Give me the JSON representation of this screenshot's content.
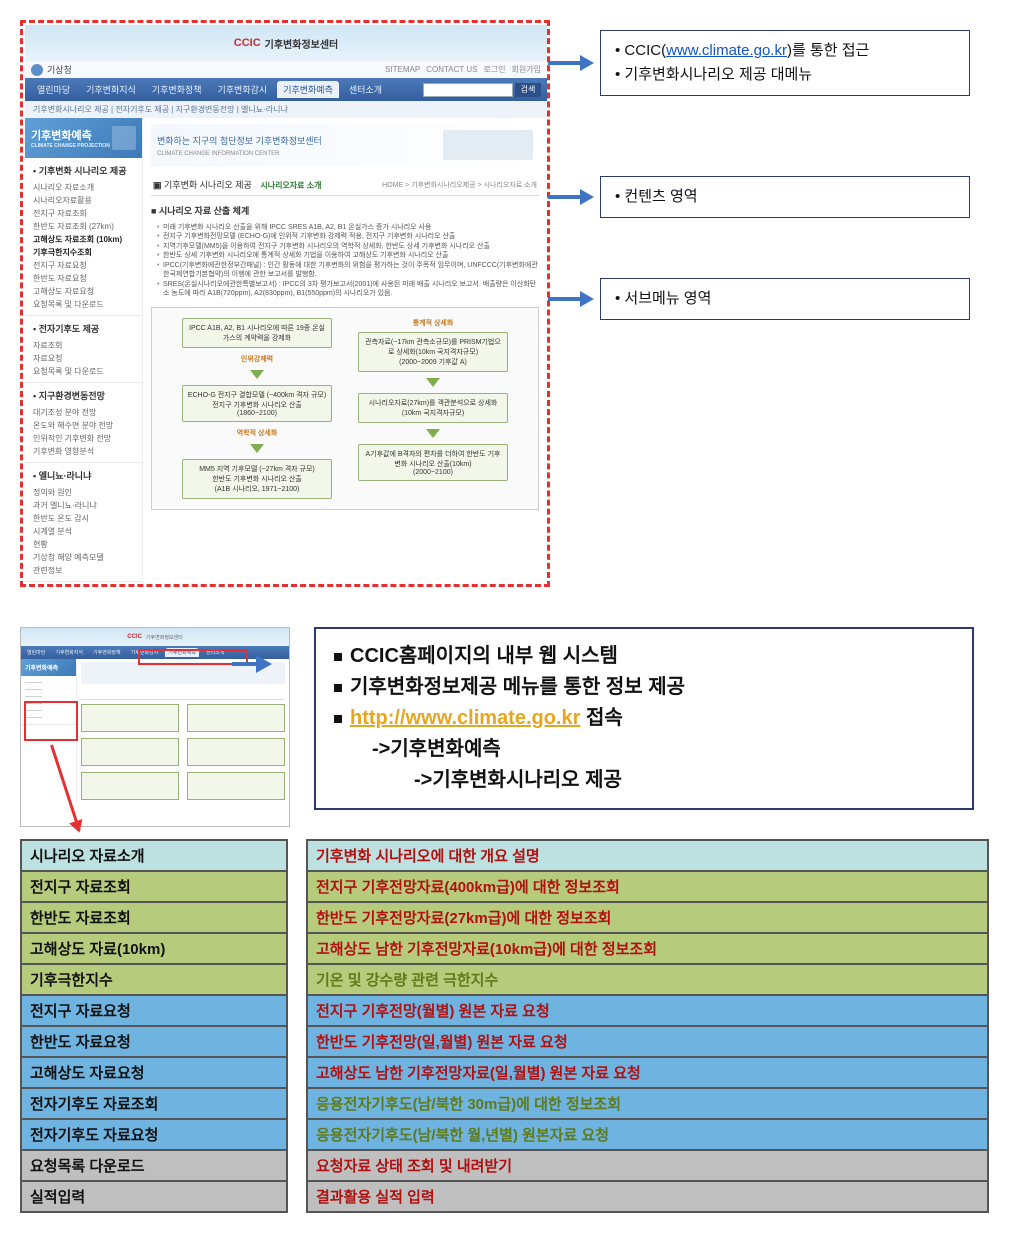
{
  "top": {
    "logo_text": "CCIC",
    "logo_sub": "기후변화정보센터",
    "logo_sub2": "CLIMATE CHANGE INFORMATION CENTER",
    "kma": "기상청",
    "util": {
      "sitemap": "SITEMAP",
      "contact": "CONTACT US",
      "login": "로그인",
      "join": "회원가입"
    },
    "gnb": [
      "열린마당",
      "기후변화지식",
      "기후변화정책",
      "기후변화감시",
      "기후변화예측",
      "센터소개"
    ],
    "gnb_active_index": 4,
    "search_btn": "검색",
    "sub_nav": "기후변화시나리오 제공 | 전자기후도 제공 | 지구환경변동전망 | 엘니뇨·라니냐",
    "lnb_head": "기후변화예측",
    "lnb_head_sub": "CLIMATE CHANGE PROJECTION",
    "lnb_groups": [
      {
        "title": "기후변화 시나리오 제공",
        "items": [
          "시나리오 자료소개",
          "시나리오자료활용",
          "전지구 자료조회",
          "한반도 자료조회 (27km)",
          "고해상도 자료조회 (10km)",
          "기후극한지수조회",
          "전지구 자료요청",
          "한반도 자료요청",
          "고해상도 자료요청",
          "요청목록 및 다운로드"
        ],
        "bold": [
          4,
          5
        ]
      },
      {
        "title": "전자기후도 제공",
        "items": [
          "자료조회",
          "자료요청",
          "요청목록 및 다운로드"
        ]
      },
      {
        "title": "지구환경변동전망",
        "items": [
          "대기조성 분야 전망",
          "온도와 해수면 분야 전망",
          "인위적인 기후변화 전망",
          "기후변화 영향분석"
        ]
      },
      {
        "title": "엘니뇨·라니냐",
        "items": [
          "정의와 원인",
          "과거 엘니뇨·라니냐",
          "한반도 온도 감시",
          "시계열 분석",
          "현황",
          "기상청 해양 예측모델",
          "관련정보"
        ]
      }
    ],
    "content_banner": "변화하는 지구의 첨단정보 기후변화정보센터",
    "content_banner_sub": "CLIMATE CHANGE INFORMATION CENTER",
    "content_title": "기후변화 시나리오 제공",
    "content_tab": "시나리오자료 소개",
    "content_breadcrumb": "HOME > 기후변화시나리오제공 > 시나리오자료 소개",
    "content_subhead": "시나리오 자료 산출 체계",
    "content_bullets": [
      "미래 기후변화 시나리오 산출을 위해 IPCC SRES A1B, A2, B1 온실가스 증가 시나리오 사용",
      "전지구 기후변화전망모델 (ECHO-G)에 인위적 기후변화 강제력 적용, 전지구 기후변화 시나리오 산출",
      "지역기후모델(MM5)을 이용하여 전지구 기후변화 시나리오의 역학적 상세화, 한반도 상세 기후변화 시나리오 산출",
      "한반도 상세 기후변화 시나리오에 통계적 상세화 기법을 이용하여 고해상도 기후변화 시나리오 산출",
      "IPCC(기후변화에관한정부간패널) : 인간 활동에 대한 기후변화의 위험을 평가하는 것이 주목적 임무이며, UNFCCC(기후변화에관한국제연합기본협약)의 이행에 관한 보고서를 발행함.",
      "SRES(온실시나리오에관한특별보고서) : IPCC의 3차 평가보고서(2001)에 사용된 미래 배출 시나리오 보고서. 배출량은 이산화탄소 농도에 따라 A1B(720ppm), A2(830ppm), B1(550ppm)의 시나리오가 있음."
    ],
    "flow_left": [
      {
        "t": "IPCC A1B, A2, B1 시나리오에 따른 19종 온실가스의 계약력을 강제화"
      },
      {
        "t": "ECHO-G 전지구 결합모델 (~400km 격자 규모)\\n전지구 기후변화 시나리오 산출\\n(1860~2100)"
      },
      {
        "t": "MM5 지역 기후모델 (~27km 격자 규모)\\n한반도 기후변화 시나리오 산출\\n(A1B 시나리오, 1971~2100)"
      }
    ],
    "flow_left_arrow_labels": [
      "인위강제력",
      "역학적 상세화"
    ],
    "flow_right_label": "통계적 상세화",
    "flow_right": [
      {
        "t": "관측자료(~17km 관측소규모)를 PRISM기법으로 상세화(10km 국지격자규모)\\n(2000~2009 기후값 A)"
      },
      {
        "t": "시나리오자료(27km)를 객관분석으로 상세화(10km 국지격자규모)"
      },
      {
        "t": "A기후값에 B격자의 편차를 더하여 한반도 기후변화 시나리오 산출(10km)\\n(2000~2100)"
      }
    ],
    "callouts": [
      {
        "html": "• CCIC(<a>www.climate.go.kr</a>)를 통한 접근<br>• 기후변화시나리오 제공 대메뉴"
      },
      {
        "html": "• 컨텐츠 영역"
      },
      {
        "html": "• 서브메뉴 영역"
      }
    ]
  },
  "info_lines": [
    "CCIC홈페이지의 내부 웹 시스템",
    "기후변화정보제공 메뉴를 통한 정보 제공"
  ],
  "info_url": "http://www.climate.go.kr",
  "info_url_tail": " 접속",
  "info_path1": "->기후변화예측",
  "info_path2": "->기후변화시나리오 제공",
  "row_colors": {
    "teal": "#bde0e0",
    "olive": "#b7cb7d",
    "blue": "#6fb3e0",
    "gray": "#bfbfbf"
  },
  "menu_rows": [
    {
      "label": "시나리오 자료소개",
      "desc": "기후변화 시나리오에 대한 개요 설명",
      "color": "teal",
      "desc_color": "red"
    },
    {
      "label": "전지구 자료조회",
      "desc": "전지구 기후전망자료(400km급)에 대한 정보조회",
      "color": "olive",
      "desc_color": "red"
    },
    {
      "label": "한반도 자료조회",
      "desc": "한반도 기후전망자료(27km급)에 대한 정보조회",
      "color": "olive",
      "desc_color": "red"
    },
    {
      "label": "고해상도 자료(10km)",
      "desc": "고해상도 남한 기후전망자료(10km급)에 대한 정보조회",
      "color": "olive",
      "desc_color": "red"
    },
    {
      "label": "기후극한지수",
      "desc": "기온 및 강수량 관련 극한지수",
      "color": "olive",
      "desc_color": "olive"
    },
    {
      "label": "전지구 자료요청",
      "desc": "전지구 기후전망(월별) 원본 자료 요청",
      "color": "blue",
      "desc_color": "red"
    },
    {
      "label": "한반도 자료요청",
      "desc": "한반도 기후전망(일,월별) 원본 자료 요청",
      "color": "blue",
      "desc_color": "red"
    },
    {
      "label": "고해상도 자료요청",
      "desc": "고해상도 남한 기후전망자료(일,월별) 원본 자료 요청",
      "color": "blue",
      "desc_color": "red"
    },
    {
      "label": "전자기후도 자료조회",
      "desc": "응용전자기후도(남/북한 30m급)에 대한 정보조회",
      "color": "blue",
      "desc_color": "olive"
    },
    {
      "label": "전자기후도 자료요청",
      "desc": "응용전자기후도(남/북한 월,년별) 원본자료 요청",
      "color": "blue",
      "desc_color": "olive"
    },
    {
      "label": "요청목록 다운로드",
      "desc": "요청자료 상태 조회 및 내려받기",
      "color": "gray",
      "desc_color": "red"
    },
    {
      "label": "실적입력",
      "desc": "결과활용 실적 입력",
      "color": "gray",
      "desc_color": "red"
    }
  ]
}
